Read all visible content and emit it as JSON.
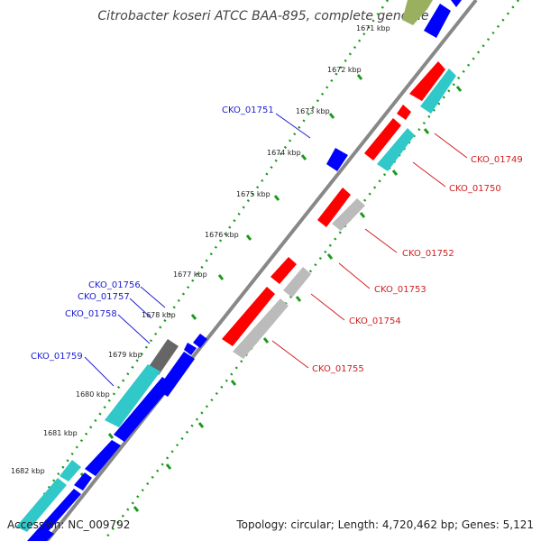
{
  "title": "Citrobacter koseri ATCC BAA-895, complete genome",
  "accession": "Accession: NC_009792",
  "topology": "Topology: circular; Length: 4,720,462 bp; Genes: 5,121",
  "ticks": [
    "1671 kbp",
    "1672 kbp",
    "1673 kbp",
    "1674 kbp",
    "1675 kbp",
    "1676 kbp",
    "1677 kbp",
    "1678 kbp",
    "1679 kbp",
    "1680 kbp",
    "1681 kbp",
    "1682 kbp"
  ],
  "labels_left": [
    "CKO_01751",
    "CKO_01756",
    "CKO_01757",
    "CKO_01758",
    "CKO_01759"
  ],
  "labels_right": [
    "CKO_01749",
    "CKO_01750",
    "CKO_01752",
    "CKO_01753",
    "CKO_01754",
    "CKO_01755"
  ],
  "colors": {
    "forward_cds": "#ff0000",
    "reverse_cds": "#0000ff",
    "forward_gene": "#bbbbbb",
    "reverse_gene_cyan": "#30c8c8",
    "dark_gene": "#666666",
    "backbone": "#888888",
    "tick_dots": "#1a9a1a",
    "label_blue": "#2020d0",
    "label_red": "#d02020"
  }
}
